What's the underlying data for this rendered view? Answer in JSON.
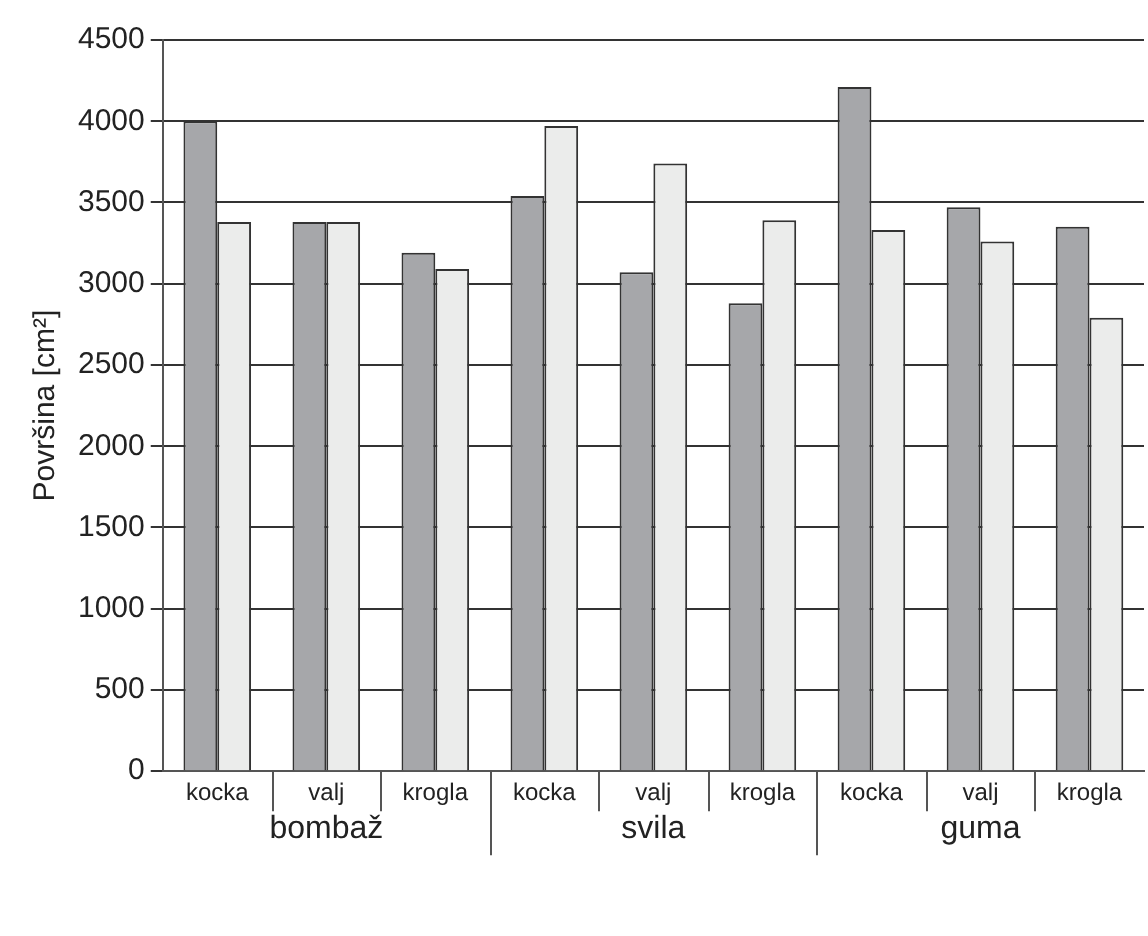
{
  "chart_data": {
    "type": "bar",
    "ylabel": "Površina [cm²]",
    "categories": [
      "kocka",
      "valj",
      "krogla",
      "kocka",
      "valj",
      "krogla",
      "kocka",
      "valj",
      "krogla"
    ],
    "series": [
      {
        "color": "#a6a7aa",
        "values": [
          4000,
          3380,
          3190,
          3540,
          3070,
          2880,
          4210,
          3470,
          3350
        ]
      },
      {
        "color": "#ebeceb",
        "values": [
          3380,
          3380,
          3090,
          3970,
          3740,
          3390,
          3330,
          3260,
          2790
        ]
      }
    ],
    "ylim": [
      0,
      4500
    ],
    "yticks": [
      0,
      500,
      1000,
      1500,
      2000,
      2500,
      3000,
      3500,
      4000,
      4500
    ],
    "grid": "y",
    "legend": false,
    "annotations": [
      "bombaž",
      "svila",
      "guma"
    ]
  }
}
